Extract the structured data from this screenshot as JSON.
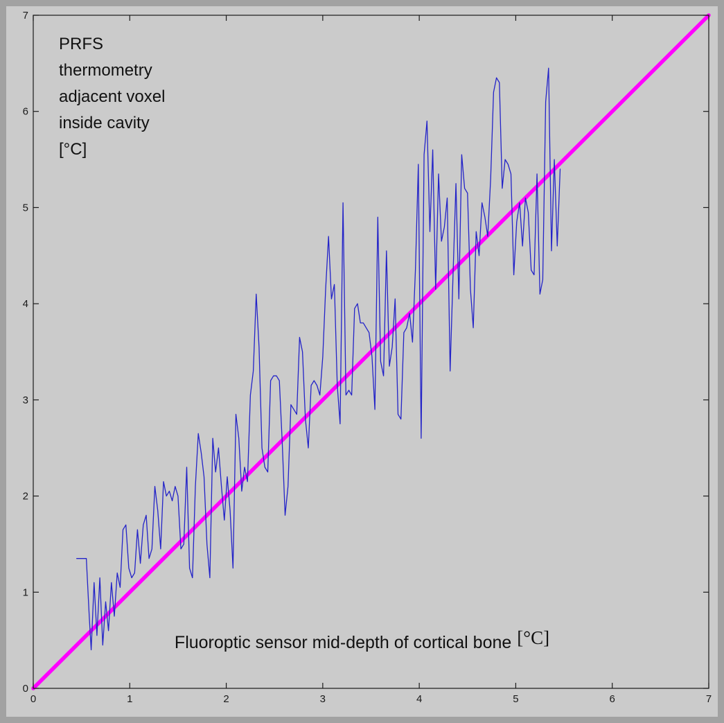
{
  "figure": {
    "outer_border_color": "#a2a2a2",
    "background_color": "#cbcbcb",
    "axis_color": "#1a1a1a"
  },
  "chart_data": {
    "type": "line",
    "title": "",
    "xlabel": "Fluoroptic sensor mid-depth of cortical bone",
    "xlabel_unit": "[°C]",
    "ylabel_lines": [
      "PRFS",
      "thermometry",
      "adjacent voxel",
      "inside cavity",
      "[°C]"
    ],
    "xlim": [
      0,
      7
    ],
    "ylim": [
      0,
      7
    ],
    "xticks": [
      0,
      1,
      2,
      3,
      4,
      5,
      6,
      7
    ],
    "yticks": [
      0,
      1,
      2,
      3,
      4,
      5,
      6,
      7
    ],
    "grid": false,
    "legend": "none",
    "series": [
      {
        "name": "identity-line",
        "color": "#ff00ff",
        "width": 5.5,
        "points": [
          [
            0,
            0
          ],
          [
            7,
            7
          ]
        ]
      },
      {
        "name": "prfs-vs-sensor-trace",
        "color": "#2323c8",
        "width": 1.3,
        "points": [
          [
            0.45,
            1.35
          ],
          [
            0.5,
            1.35
          ],
          [
            0.55,
            1.35
          ],
          [
            0.58,
            0.75
          ],
          [
            0.6,
            0.4
          ],
          [
            0.63,
            1.1
          ],
          [
            0.66,
            0.55
          ],
          [
            0.69,
            1.15
          ],
          [
            0.72,
            0.45
          ],
          [
            0.75,
            0.9
          ],
          [
            0.78,
            0.6
          ],
          [
            0.81,
            1.1
          ],
          [
            0.84,
            0.75
          ],
          [
            0.87,
            1.2
          ],
          [
            0.9,
            1.05
          ],
          [
            0.93,
            1.65
          ],
          [
            0.96,
            1.7
          ],
          [
            0.99,
            1.25
          ],
          [
            1.02,
            1.15
          ],
          [
            1.05,
            1.2
          ],
          [
            1.08,
            1.65
          ],
          [
            1.11,
            1.3
          ],
          [
            1.14,
            1.7
          ],
          [
            1.17,
            1.8
          ],
          [
            1.2,
            1.35
          ],
          [
            1.23,
            1.45
          ],
          [
            1.26,
            2.1
          ],
          [
            1.29,
            1.85
          ],
          [
            1.32,
            1.45
          ],
          [
            1.35,
            2.15
          ],
          [
            1.38,
            2.0
          ],
          [
            1.41,
            2.05
          ],
          [
            1.44,
            1.95
          ],
          [
            1.47,
            2.1
          ],
          [
            1.5,
            2.0
          ],
          [
            1.53,
            1.45
          ],
          [
            1.56,
            1.5
          ],
          [
            1.59,
            2.3
          ],
          [
            1.62,
            1.25
          ],
          [
            1.65,
            1.15
          ],
          [
            1.68,
            2.1
          ],
          [
            1.71,
            2.65
          ],
          [
            1.74,
            2.45
          ],
          [
            1.77,
            2.2
          ],
          [
            1.8,
            1.5
          ],
          [
            1.83,
            1.15
          ],
          [
            1.86,
            2.6
          ],
          [
            1.89,
            2.25
          ],
          [
            1.92,
            2.5
          ],
          [
            1.95,
            2.1
          ],
          [
            1.98,
            1.75
          ],
          [
            2.01,
            2.2
          ],
          [
            2.04,
            1.85
          ],
          [
            2.07,
            1.25
          ],
          [
            2.1,
            2.85
          ],
          [
            2.13,
            2.6
          ],
          [
            2.16,
            2.05
          ],
          [
            2.19,
            2.3
          ],
          [
            2.22,
            2.15
          ],
          [
            2.25,
            3.05
          ],
          [
            2.28,
            3.3
          ],
          [
            2.31,
            4.1
          ],
          [
            2.34,
            3.55
          ],
          [
            2.37,
            2.5
          ],
          [
            2.4,
            2.3
          ],
          [
            2.43,
            2.25
          ],
          [
            2.46,
            3.2
          ],
          [
            2.49,
            3.25
          ],
          [
            2.52,
            3.25
          ],
          [
            2.55,
            3.2
          ],
          [
            2.58,
            2.55
          ],
          [
            2.61,
            1.8
          ],
          [
            2.64,
            2.1
          ],
          [
            2.67,
            2.95
          ],
          [
            2.7,
            2.9
          ],
          [
            2.73,
            2.85
          ],
          [
            2.76,
            3.65
          ],
          [
            2.79,
            3.5
          ],
          [
            2.82,
            2.8
          ],
          [
            2.85,
            2.5
          ],
          [
            2.88,
            3.15
          ],
          [
            2.91,
            3.2
          ],
          [
            2.94,
            3.15
          ],
          [
            2.97,
            3.05
          ],
          [
            3.0,
            3.45
          ],
          [
            3.03,
            4.15
          ],
          [
            3.06,
            4.7
          ],
          [
            3.09,
            4.05
          ],
          [
            3.12,
            4.2
          ],
          [
            3.15,
            3.15
          ],
          [
            3.18,
            2.75
          ],
          [
            3.21,
            5.05
          ],
          [
            3.24,
            3.05
          ],
          [
            3.27,
            3.1
          ],
          [
            3.3,
            3.05
          ],
          [
            3.33,
            3.95
          ],
          [
            3.36,
            4.0
          ],
          [
            3.39,
            3.8
          ],
          [
            3.42,
            3.8
          ],
          [
            3.45,
            3.75
          ],
          [
            3.48,
            3.7
          ],
          [
            3.51,
            3.45
          ],
          [
            3.54,
            2.9
          ],
          [
            3.57,
            4.9
          ],
          [
            3.6,
            3.4
          ],
          [
            3.63,
            3.25
          ],
          [
            3.66,
            4.55
          ],
          [
            3.69,
            3.35
          ],
          [
            3.72,
            3.55
          ],
          [
            3.75,
            4.05
          ],
          [
            3.78,
            2.85
          ],
          [
            3.81,
            2.8
          ],
          [
            3.84,
            3.7
          ],
          [
            3.87,
            3.75
          ],
          [
            3.9,
            3.9
          ],
          [
            3.93,
            3.6
          ],
          [
            3.96,
            4.35
          ],
          [
            3.99,
            5.45
          ],
          [
            4.02,
            2.6
          ],
          [
            4.05,
            5.55
          ],
          [
            4.08,
            5.9
          ],
          [
            4.11,
            4.75
          ],
          [
            4.14,
            5.6
          ],
          [
            4.17,
            4.15
          ],
          [
            4.2,
            5.35
          ],
          [
            4.23,
            4.65
          ],
          [
            4.26,
            4.8
          ],
          [
            4.29,
            5.1
          ],
          [
            4.32,
            3.3
          ],
          [
            4.35,
            4.3
          ],
          [
            4.38,
            5.25
          ],
          [
            4.41,
            4.05
          ],
          [
            4.44,
            5.55
          ],
          [
            4.47,
            5.2
          ],
          [
            4.5,
            5.15
          ],
          [
            4.53,
            4.15
          ],
          [
            4.56,
            3.75
          ],
          [
            4.59,
            4.75
          ],
          [
            4.62,
            4.5
          ],
          [
            4.65,
            5.05
          ],
          [
            4.68,
            4.9
          ],
          [
            4.71,
            4.7
          ],
          [
            4.74,
            5.3
          ],
          [
            4.77,
            6.2
          ],
          [
            4.8,
            6.35
          ],
          [
            4.83,
            6.3
          ],
          [
            4.86,
            5.2
          ],
          [
            4.89,
            5.5
          ],
          [
            4.92,
            5.45
          ],
          [
            4.95,
            5.35
          ],
          [
            4.98,
            4.3
          ],
          [
            5.01,
            4.85
          ],
          [
            5.04,
            5.05
          ],
          [
            5.07,
            4.6
          ],
          [
            5.1,
            5.1
          ],
          [
            5.13,
            4.95
          ],
          [
            5.16,
            4.35
          ],
          [
            5.19,
            4.3
          ],
          [
            5.22,
            5.35
          ],
          [
            5.25,
            4.1
          ],
          [
            5.28,
            4.25
          ],
          [
            5.31,
            6.1
          ],
          [
            5.34,
            6.45
          ],
          [
            5.37,
            4.55
          ],
          [
            5.4,
            5.5
          ],
          [
            5.43,
            4.6
          ],
          [
            5.46,
            5.4
          ]
        ]
      }
    ]
  }
}
